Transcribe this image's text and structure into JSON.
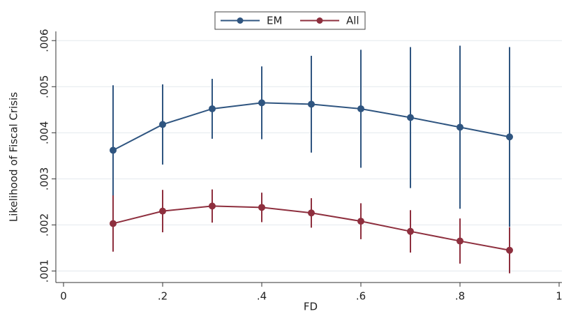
{
  "chart_data": {
    "type": "line",
    "x_label": "FD",
    "y_label": "Likelihood of Fiscal Crisis",
    "x": [
      0.1,
      0.2,
      0.3,
      0.4,
      0.5,
      0.6,
      0.7,
      0.8,
      0.9
    ],
    "series": [
      {
        "name": "EM",
        "color": "#2f5580",
        "values": [
          0.00362,
          0.00418,
          0.00452,
          0.00465,
          0.00462,
          0.00452,
          0.00433,
          0.00412,
          0.00391
        ],
        "errors": [
          0.00141,
          0.00087,
          0.00065,
          0.00079,
          0.00105,
          0.00128,
          0.00153,
          0.00177,
          0.00195
        ]
      },
      {
        "name": "All",
        "color": "#8e2f3e",
        "values": [
          0.00203,
          0.0023,
          0.00241,
          0.00238,
          0.00226,
          0.00208,
          0.00186,
          0.00165,
          0.00145
        ],
        "errors": [
          0.00061,
          0.00046,
          0.00036,
          0.00032,
          0.00032,
          0.00039,
          0.00046,
          0.00049,
          0.0005
        ]
      }
    ],
    "xlim": [
      0,
      1
    ],
    "xticks": [
      0,
      {
        "value": 0.2,
        "label": ".2"
      },
      {
        "value": 0.4,
        "label": ".4"
      },
      {
        "value": 0.6,
        "label": ".6"
      },
      {
        "value": 0.8,
        "label": ".8"
      },
      1
    ],
    "ylim": [
      0.00075,
      0.0062
    ],
    "yticks": [
      {
        "value": 0.001,
        "label": ".001"
      },
      {
        "value": 0.002,
        "label": ".002"
      },
      {
        "value": 0.003,
        "label": ".003"
      },
      {
        "value": 0.004,
        "label": ".004"
      },
      {
        "value": 0.005,
        "label": ".005"
      },
      {
        "value": 0.006,
        "label": ".006"
      }
    ],
    "grid": true,
    "legend": "top"
  }
}
